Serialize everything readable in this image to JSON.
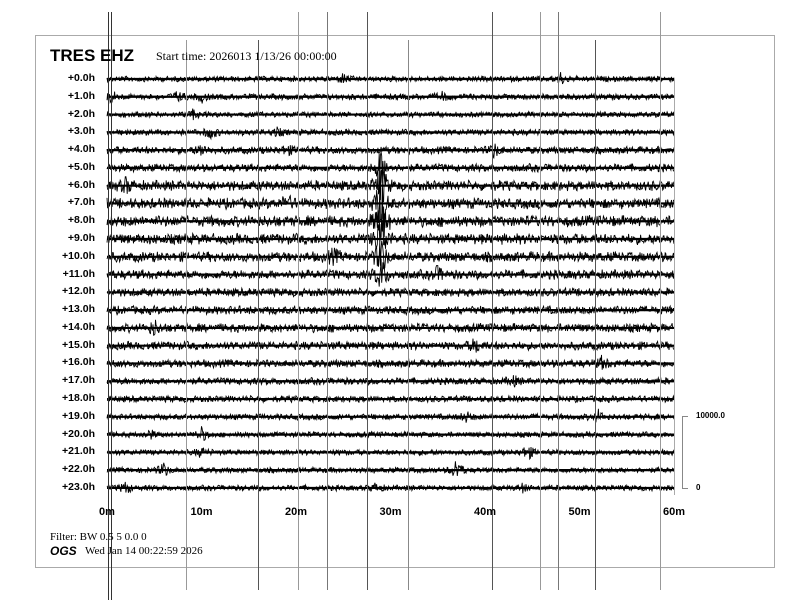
{
  "header": {
    "station": "TRES EHZ",
    "start_time": "Start time: 2026013  1/13/26 00:00:00"
  },
  "footer": {
    "filter": "Filter: BW 0.5 5 0.0 0",
    "agency": "OGS",
    "generated": "Wed Jan 14 00:22:59 2026"
  },
  "chart_data": {
    "type": "line",
    "subtype": "helicorder",
    "row_labels": [
      "+0.0h",
      "+1.0h",
      "+2.0h",
      "+3.0h",
      "+4.0h",
      "+5.0h",
      "+6.0h",
      "+7.0h",
      "+8.0h",
      "+9.0h",
      "+10.0h",
      "+11.0h",
      "+12.0h",
      "+13.0h",
      "+14.0h",
      "+15.0h",
      "+16.0h",
      "+17.0h",
      "+18.0h",
      "+19.0h",
      "+20.0h",
      "+21.0h",
      "+22.0h",
      "+23.0h"
    ],
    "x_ticks": [
      "0m",
      "10m",
      "20m",
      "30m",
      "40m",
      "50m",
      "60m"
    ],
    "xlim": [
      0,
      60
    ],
    "scale_labels": {
      "top": "10000.0",
      "bottom": "0"
    },
    "row_noise_level": [
      0.25,
      0.3,
      0.25,
      0.3,
      0.45,
      0.5,
      0.75,
      0.8,
      0.85,
      0.8,
      0.75,
      0.65,
      0.55,
      0.55,
      0.6,
      0.55,
      0.5,
      0.4,
      0.35,
      0.3,
      0.25,
      0.25,
      0.25,
      0.25
    ],
    "events": [
      {
        "row": 0,
        "minute": 25,
        "amp": 2
      },
      {
        "row": 0,
        "minute": 48,
        "amp": 2.5
      },
      {
        "row": 1,
        "minute": 0.5,
        "amp": 2.5
      },
      {
        "row": 1,
        "minute": 7.5,
        "amp": 2
      },
      {
        "row": 1,
        "minute": 10,
        "amp": 2
      },
      {
        "row": 1,
        "minute": 35.5,
        "amp": 1.5
      },
      {
        "row": 2,
        "minute": 9,
        "amp": 2
      },
      {
        "row": 3,
        "minute": 11,
        "amp": 2.5
      },
      {
        "row": 3,
        "minute": 18,
        "amp": 1.5
      },
      {
        "row": 4,
        "minute": 10,
        "amp": 2.5
      },
      {
        "row": 4,
        "minute": 19,
        "amp": 2
      },
      {
        "row": 4,
        "minute": 41,
        "amp": 3
      },
      {
        "row": 5,
        "minute": 29,
        "amp": 9
      },
      {
        "row": 6,
        "minute": 29,
        "amp": 12
      },
      {
        "row": 7,
        "minute": 29,
        "amp": 14
      },
      {
        "row": 8,
        "minute": 29,
        "amp": 14
      },
      {
        "row": 9,
        "minute": 29,
        "amp": 14
      },
      {
        "row": 10,
        "minute": 29,
        "amp": 10
      },
      {
        "row": 11,
        "minute": 29,
        "amp": 8
      },
      {
        "row": 6,
        "minute": 2,
        "amp": 3
      },
      {
        "row": 7,
        "minute": 19,
        "amp": 3
      },
      {
        "row": 10,
        "minute": 24,
        "amp": 3
      },
      {
        "row": 11,
        "minute": 35,
        "amp": 3
      },
      {
        "row": 14,
        "minute": 5,
        "amp": 3
      },
      {
        "row": 15,
        "minute": 39,
        "amp": 3
      },
      {
        "row": 16,
        "minute": 52.5,
        "amp": 3
      },
      {
        "row": 17,
        "minute": 43,
        "amp": 2
      },
      {
        "row": 19,
        "minute": 52,
        "amp": 2.5
      },
      {
        "row": 19,
        "minute": 38,
        "amp": 2
      },
      {
        "row": 20,
        "minute": 10,
        "amp": 3
      },
      {
        "row": 20,
        "minute": 4.5,
        "amp": 2
      },
      {
        "row": 21,
        "minute": 44.5,
        "amp": 3.5
      },
      {
        "row": 21,
        "minute": 10,
        "amp": 2
      },
      {
        "row": 22,
        "minute": 37,
        "amp": 5
      },
      {
        "row": 22,
        "minute": 6,
        "amp": 3
      },
      {
        "row": 23,
        "minute": 2,
        "amp": 2.5
      },
      {
        "row": 23,
        "minute": 28.5,
        "amp": 2
      },
      {
        "row": 23,
        "minute": 44,
        "amp": 1.5
      }
    ]
  }
}
